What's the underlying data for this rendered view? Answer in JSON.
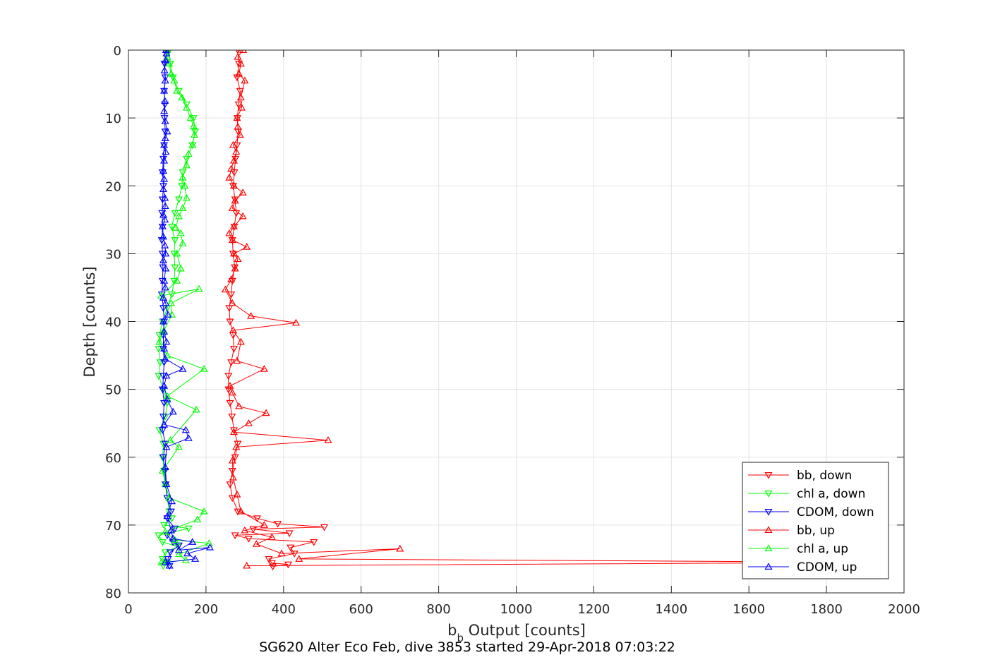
{
  "chart_data": {
    "type": "line",
    "title": "SG620 Alter Eco Feb, dive 3853 started 29-Apr-2018 07:03:22",
    "xlabel": {
      "main": "b",
      "sub": "b",
      "rest": " Output [counts]"
    },
    "ylabel": "Depth [counts]",
    "xlim": [
      0,
      2000
    ],
    "ylim": [
      0,
      80
    ],
    "y_reversed": true,
    "grid": true,
    "legend_position": "bottom-right",
    "x_ticks": [
      0,
      200,
      400,
      600,
      800,
      1000,
      1200,
      1400,
      1600,
      1800,
      2000
    ],
    "y_ticks": [
      0,
      10,
      20,
      30,
      40,
      50,
      60,
      70,
      80
    ],
    "series": [
      {
        "name": "bb, down",
        "color": "#ff0000",
        "marker": "triangle-down",
        "points": [
          [
            282,
            0
          ],
          [
            285,
            2
          ],
          [
            280,
            4
          ],
          [
            288,
            6
          ],
          [
            284,
            8
          ],
          [
            281,
            10
          ],
          [
            283,
            12
          ],
          [
            280,
            14
          ],
          [
            276,
            16
          ],
          [
            273,
            18
          ],
          [
            270,
            20
          ],
          [
            275,
            22
          ],
          [
            278,
            24
          ],
          [
            273,
            26
          ],
          [
            268,
            28
          ],
          [
            270,
            30
          ],
          [
            274,
            32
          ],
          [
            268,
            34
          ],
          [
            265,
            36
          ],
          [
            260,
            38
          ],
          [
            262,
            40
          ],
          [
            270,
            42
          ],
          [
            272,
            44
          ],
          [
            265,
            46
          ],
          [
            258,
            48
          ],
          [
            258,
            50
          ],
          [
            262,
            52
          ],
          [
            267,
            54
          ],
          [
            272,
            56
          ],
          [
            282,
            58
          ],
          [
            275,
            60
          ],
          [
            268,
            62
          ],
          [
            262,
            64
          ],
          [
            268,
            66
          ],
          [
            282,
            68
          ],
          [
            332,
            69
          ],
          [
            385,
            69.8
          ],
          [
            505,
            70.3
          ],
          [
            322,
            70.6
          ],
          [
            415,
            71.2
          ],
          [
            275,
            71.5
          ],
          [
            310,
            72
          ],
          [
            478,
            72.5
          ],
          [
            418,
            73.3
          ],
          [
            428,
            74.2
          ],
          [
            362,
            75
          ],
          [
            370,
            75.6
          ],
          [
            412,
            75.8
          ],
          [
            372,
            76.1
          ]
        ]
      },
      {
        "name": "chl a, down",
        "color": "#00ff00",
        "marker": "triangle-down",
        "points": [
          [
            105,
            0
          ],
          [
            108,
            2
          ],
          [
            115,
            4
          ],
          [
            130,
            6
          ],
          [
            150,
            8
          ],
          [
            168,
            10
          ],
          [
            172,
            12
          ],
          [
            165,
            14
          ],
          [
            150,
            16
          ],
          [
            140,
            18
          ],
          [
            138,
            20
          ],
          [
            130,
            22
          ],
          [
            120,
            24
          ],
          [
            112,
            26
          ],
          [
            120,
            28
          ],
          [
            118,
            30
          ],
          [
            120,
            32
          ],
          [
            118,
            34
          ],
          [
            112,
            36
          ],
          [
            100,
            38
          ],
          [
            88,
            40
          ],
          [
            80,
            42
          ],
          [
            78,
            44
          ],
          [
            82,
            46
          ],
          [
            78,
            48
          ],
          [
            90,
            50
          ],
          [
            100,
            52
          ],
          [
            95,
            54
          ],
          [
            80,
            56
          ],
          [
            90,
            58
          ],
          [
            88,
            60
          ],
          [
            92,
            62
          ],
          [
            95,
            64
          ],
          [
            100,
            66
          ],
          [
            105,
            68
          ],
          [
            112,
            69
          ],
          [
            92,
            70
          ],
          [
            155,
            70.5
          ],
          [
            78,
            71.5
          ],
          [
            88,
            72.5
          ],
          [
            128,
            73.2
          ],
          [
            95,
            74
          ],
          [
            88,
            75
          ],
          [
            100,
            75.5
          ],
          [
            90,
            76
          ]
        ]
      },
      {
        "name": "CDOM, down",
        "color": "#0000ff",
        "marker": "triangle-down",
        "points": [
          [
            95,
            0
          ],
          [
            93,
            2
          ],
          [
            95,
            4
          ],
          [
            92,
            6
          ],
          [
            94,
            8
          ],
          [
            93,
            10
          ],
          [
            95,
            12
          ],
          [
            92,
            14
          ],
          [
            90,
            16
          ],
          [
            88,
            18
          ],
          [
            90,
            20
          ],
          [
            88,
            22
          ],
          [
            87,
            24
          ],
          [
            88,
            26
          ],
          [
            86,
            28
          ],
          [
            88,
            30
          ],
          [
            89,
            32
          ],
          [
            88,
            34
          ],
          [
            86,
            36
          ],
          [
            90,
            38
          ],
          [
            92,
            40
          ],
          [
            90,
            42
          ],
          [
            90,
            44
          ],
          [
            92,
            46
          ],
          [
            90,
            48
          ],
          [
            88,
            50
          ],
          [
            92,
            52
          ],
          [
            90,
            54
          ],
          [
            88,
            56
          ],
          [
            95,
            58
          ],
          [
            90,
            60
          ],
          [
            94,
            62
          ],
          [
            96,
            64
          ],
          [
            100,
            66
          ],
          [
            110,
            68
          ],
          [
            100,
            69
          ],
          [
            120,
            70.5
          ],
          [
            100,
            71.5
          ],
          [
            115,
            72.5
          ],
          [
            130,
            73
          ],
          [
            108,
            74
          ],
          [
            102,
            75
          ],
          [
            106,
            76
          ]
        ]
      },
      {
        "name": "bb, up",
        "color": "#ff0000",
        "marker": "triangle-up",
        "points": [
          [
            305,
            76
          ],
          [
            1940,
            75.5
          ],
          [
            440,
            75
          ],
          [
            700,
            73.5
          ],
          [
            395,
            74.2
          ],
          [
            330,
            72.8
          ],
          [
            370,
            71.8
          ],
          [
            300,
            70.8
          ],
          [
            350,
            70
          ],
          [
            290,
            68
          ],
          [
            280,
            65.5
          ],
          [
            270,
            63
          ],
          [
            268,
            60.5
          ],
          [
            278,
            58.5
          ],
          [
            515,
            57.5
          ],
          [
            272,
            56.3
          ],
          [
            310,
            55
          ],
          [
            355,
            53.5
          ],
          [
            285,
            52.5
          ],
          [
            268,
            50.5
          ],
          [
            262,
            49.5
          ],
          [
            350,
            47
          ],
          [
            280,
            45.8
          ],
          [
            290,
            43
          ],
          [
            270,
            41.3
          ],
          [
            432,
            40.2
          ],
          [
            316,
            39.2
          ],
          [
            268,
            37.3
          ],
          [
            250,
            35.3
          ],
          [
            265,
            33.8
          ],
          [
            275,
            32.2
          ],
          [
            282,
            30.8
          ],
          [
            272,
            30
          ],
          [
            305,
            29
          ],
          [
            268,
            28
          ],
          [
            260,
            27
          ],
          [
            272,
            26
          ],
          [
            295,
            24.5
          ],
          [
            268,
            23.3
          ],
          [
            275,
            22.2
          ],
          [
            295,
            21
          ],
          [
            272,
            20
          ],
          [
            260,
            18.8
          ],
          [
            265,
            17.5
          ],
          [
            272,
            16.3
          ],
          [
            278,
            15
          ],
          [
            270,
            14
          ],
          [
            288,
            12.5
          ],
          [
            282,
            11.3
          ],
          [
            280,
            10
          ],
          [
            292,
            8.5
          ],
          [
            290,
            7
          ],
          [
            300,
            4.5
          ],
          [
            285,
            3.5
          ],
          [
            290,
            2
          ],
          [
            282,
            1
          ],
          [
            296,
            0
          ]
        ]
      },
      {
        "name": "chl a, up",
        "color": "#00ff00",
        "marker": "triangle-up",
        "points": [
          [
            85,
            75.5
          ],
          [
            148,
            75.2
          ],
          [
            130,
            74.3
          ],
          [
            208,
            72.7
          ],
          [
            120,
            72.2
          ],
          [
            95,
            71
          ],
          [
            178,
            69.2
          ],
          [
            195,
            68
          ],
          [
            105,
            66
          ],
          [
            95,
            64
          ],
          [
            88,
            62
          ],
          [
            130,
            58.5
          ],
          [
            108,
            57.5
          ],
          [
            175,
            53
          ],
          [
            100,
            51
          ],
          [
            195,
            47
          ],
          [
            100,
            45
          ],
          [
            80,
            43
          ],
          [
            90,
            41.5
          ],
          [
            112,
            39
          ],
          [
            110,
            37.3
          ],
          [
            182,
            35.2
          ],
          [
            85,
            36.2
          ],
          [
            125,
            34
          ],
          [
            135,
            32.2
          ],
          [
            125,
            30
          ],
          [
            140,
            28.5
          ],
          [
            135,
            27
          ],
          [
            122,
            26.2
          ],
          [
            130,
            24.5
          ],
          [
            140,
            23.3
          ],
          [
            150,
            21.8
          ],
          [
            145,
            20
          ],
          [
            140,
            18.8
          ],
          [
            150,
            17
          ],
          [
            155,
            15.3
          ],
          [
            165,
            14
          ],
          [
            170,
            12.5
          ],
          [
            168,
            11.2
          ],
          [
            160,
            10
          ],
          [
            150,
            8.5
          ],
          [
            138,
            7
          ],
          [
            125,
            6
          ],
          [
            118,
            4.5
          ],
          [
            110,
            3.5
          ],
          [
            105,
            2
          ],
          [
            100,
            1
          ],
          [
            100,
            0
          ]
        ]
      },
      {
        "name": "CDOM, up",
        "color": "#0000ff",
        "marker": "triangle-up",
        "points": [
          [
            106,
            76
          ],
          [
            95,
            75.5
          ],
          [
            172,
            75
          ],
          [
            152,
            74.2
          ],
          [
            210,
            73.3
          ],
          [
            130,
            73.7
          ],
          [
            165,
            72.5
          ],
          [
            115,
            72
          ],
          [
            110,
            70.8
          ],
          [
            100,
            68.7
          ],
          [
            112,
            66.5
          ],
          [
            98,
            64
          ],
          [
            95,
            61.5
          ],
          [
            98,
            58.5
          ],
          [
            155,
            57.2
          ],
          [
            148,
            56
          ],
          [
            92,
            55.2
          ],
          [
            115,
            53.3
          ],
          [
            100,
            51.5
          ],
          [
            92,
            49.5
          ],
          [
            98,
            48
          ],
          [
            140,
            47
          ],
          [
            95,
            45.5
          ],
          [
            92,
            44
          ],
          [
            98,
            43
          ],
          [
            92,
            41.5
          ],
          [
            90,
            40
          ],
          [
            102,
            39
          ],
          [
            96,
            37.3
          ],
          [
            90,
            36.5
          ],
          [
            95,
            35
          ],
          [
            92,
            34
          ],
          [
            96,
            32.2
          ],
          [
            90,
            31
          ],
          [
            96,
            30
          ],
          [
            94,
            28.8
          ],
          [
            90,
            27.5
          ],
          [
            88,
            26
          ],
          [
            94,
            25
          ],
          [
            90,
            24.3
          ],
          [
            95,
            23
          ],
          [
            94,
            21.8
          ],
          [
            90,
            20.5
          ],
          [
            92,
            19
          ],
          [
            90,
            17.8
          ],
          [
            92,
            16.3
          ],
          [
            96,
            15
          ],
          [
            92,
            14
          ],
          [
            95,
            13
          ],
          [
            100,
            12
          ],
          [
            95,
            10.5
          ],
          [
            92,
            9
          ],
          [
            94,
            7.5
          ],
          [
            92,
            6
          ],
          [
            95,
            4.5
          ],
          [
            93,
            3
          ],
          [
            96,
            1.5
          ],
          [
            98,
            0.5
          ],
          [
            97,
            0
          ]
        ]
      }
    ]
  }
}
